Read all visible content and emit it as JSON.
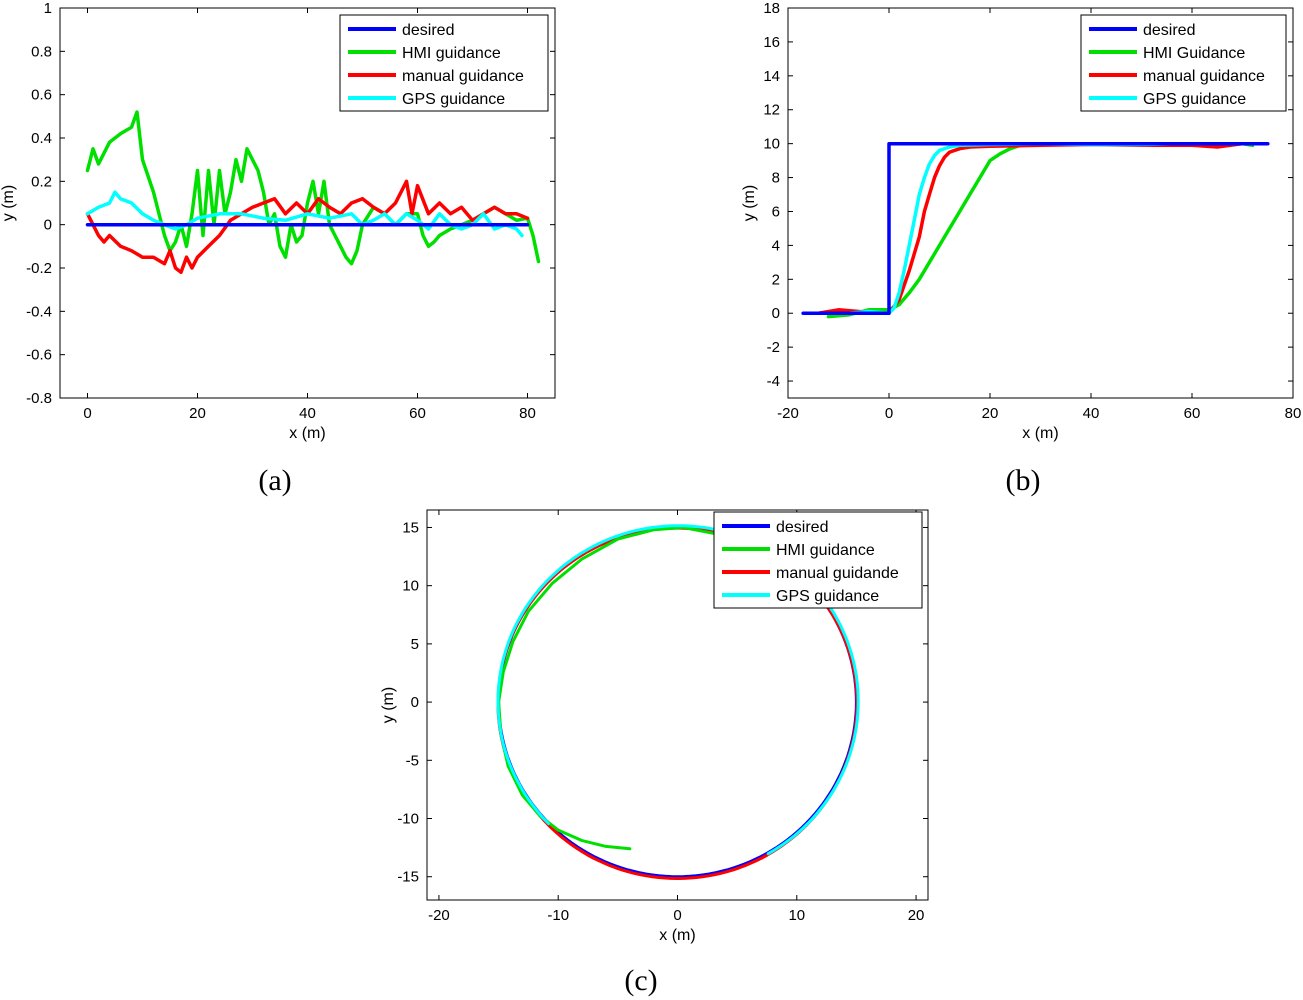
{
  "colors": {
    "desired": "#0000ff",
    "hmi": "#00e000",
    "manual": "#ff0000",
    "gps": "#00ffff"
  },
  "chart_data": [
    {
      "id": "a",
      "caption": "(a)",
      "type": "line",
      "xlabel": "x (m)",
      "ylabel": "y (m)",
      "xlim": [
        -5,
        85
      ],
      "ylim": [
        -0.8,
        1.0
      ],
      "xticks": [
        0,
        20,
        40,
        60,
        80
      ],
      "yticks": [
        -0.8,
        -0.6,
        -0.4,
        -0.2,
        0,
        0.2,
        0.4,
        0.6,
        0.8,
        1
      ],
      "ytick_labels": [
        "-0.8",
        "-0.6",
        "-0.4",
        "-0.2",
        "0",
        "0.2",
        "0.4",
        "0.6",
        "0.8",
        "1"
      ],
      "legend": "top-right",
      "series": [
        {
          "name": "desired",
          "color_key": "desired",
          "x": [
            0,
            80
          ],
          "y": [
            0,
            0
          ]
        },
        {
          "name": "HMI guidance",
          "color_key": "hmi",
          "x": [
            0,
            1,
            2,
            4,
            6,
            8,
            9,
            10,
            12,
            14,
            15,
            16,
            17,
            18,
            19,
            20,
            21,
            22,
            23,
            24,
            25,
            26,
            27,
            28,
            29,
            30,
            31,
            32,
            33,
            34,
            35,
            36,
            37,
            38,
            39,
            40,
            41,
            42,
            43,
            44,
            45,
            46,
            47,
            48,
            49,
            50,
            52,
            54,
            56,
            58,
            60,
            61,
            62,
            63,
            64,
            66,
            68,
            70,
            72,
            74,
            76,
            78,
            80,
            81,
            82
          ],
          "y": [
            0.25,
            0.35,
            0.28,
            0.38,
            0.42,
            0.45,
            0.52,
            0.3,
            0.15,
            -0.05,
            -0.12,
            -0.08,
            0.0,
            -0.1,
            0.05,
            0.25,
            -0.05,
            0.25,
            0.0,
            0.25,
            0.05,
            0.15,
            0.3,
            0.2,
            0.35,
            0.3,
            0.25,
            0.15,
            0.0,
            0.05,
            -0.1,
            -0.15,
            0.0,
            -0.08,
            -0.05,
            0.1,
            0.2,
            0.05,
            0.2,
            0.0,
            -0.05,
            -0.1,
            -0.15,
            -0.18,
            -0.12,
            0.0,
            0.08,
            0.05,
            0.0,
            0.05,
            0.05,
            -0.05,
            -0.1,
            -0.08,
            -0.05,
            -0.02,
            0.0,
            0.02,
            0.05,
            0.08,
            0.05,
            0.02,
            0.03,
            -0.05,
            -0.17
          ]
        },
        {
          "name": "manual guidance",
          "color_key": "manual",
          "x": [
            0,
            1,
            2,
            3,
            4,
            6,
            8,
            10,
            12,
            14,
            15,
            16,
            17,
            18,
            19,
            20,
            22,
            24,
            26,
            28,
            30,
            32,
            34,
            36,
            38,
            40,
            42,
            44,
            46,
            48,
            50,
            52,
            54,
            56,
            58,
            59,
            60,
            62,
            64,
            66,
            68,
            70,
            72,
            74,
            76,
            78,
            80
          ],
          "y": [
            0.05,
            0.0,
            -0.05,
            -0.08,
            -0.05,
            -0.1,
            -0.12,
            -0.15,
            -0.15,
            -0.18,
            -0.12,
            -0.2,
            -0.22,
            -0.15,
            -0.2,
            -0.15,
            -0.1,
            -0.05,
            0.02,
            0.05,
            0.08,
            0.1,
            0.12,
            0.05,
            0.1,
            0.05,
            0.12,
            0.08,
            0.05,
            0.1,
            0.12,
            0.08,
            0.05,
            0.1,
            0.2,
            0.05,
            0.18,
            0.05,
            0.1,
            0.05,
            0.08,
            0.02,
            0.05,
            0.08,
            0.05,
            0.05,
            0.03
          ]
        },
        {
          "name": "GPS guidance",
          "color_key": "gps",
          "x": [
            0,
            2,
            4,
            5,
            6,
            8,
            10,
            12,
            14,
            16,
            18,
            20,
            24,
            28,
            32,
            36,
            40,
            44,
            48,
            50,
            52,
            54,
            56,
            58,
            60,
            62,
            64,
            66,
            68,
            70,
            72,
            74,
            76,
            78,
            79
          ],
          "y": [
            0.05,
            0.08,
            0.1,
            0.15,
            0.12,
            0.1,
            0.05,
            0.02,
            0.0,
            -0.02,
            0.0,
            0.03,
            0.05,
            0.05,
            0.03,
            0.02,
            0.05,
            0.03,
            0.05,
            0.0,
            0.02,
            0.05,
            0.0,
            0.05,
            0.02,
            -0.02,
            0.05,
            0.0,
            -0.02,
            0.0,
            0.05,
            -0.02,
            0.0,
            -0.02,
            -0.05
          ]
        }
      ]
    },
    {
      "id": "b",
      "caption": "(b)",
      "type": "line",
      "xlabel": "x (m)",
      "ylabel": "y (m)",
      "xlim": [
        -20,
        80
      ],
      "ylim": [
        -5,
        18
      ],
      "xticks": [
        -20,
        0,
        20,
        40,
        60,
        80
      ],
      "yticks": [
        -4,
        -2,
        0,
        2,
        4,
        6,
        8,
        10,
        12,
        14,
        16,
        18
      ],
      "ytick_labels": [
        "-4",
        "-2",
        "0",
        "2",
        "4",
        "6",
        "8",
        "10",
        "12",
        "14",
        "16",
        "18"
      ],
      "legend": "top-right",
      "series": [
        {
          "name": "desired",
          "color_key": "desired",
          "x": [
            -17,
            0,
            0,
            75
          ],
          "y": [
            0,
            0,
            10,
            10
          ]
        },
        {
          "name": "HMI Guidance",
          "color_key": "hmi",
          "x": [
            -12,
            -8,
            -4,
            0,
            2,
            4,
            6,
            8,
            10,
            12,
            14,
            16,
            18,
            20,
            22,
            24,
            26,
            30,
            40,
            50,
            60,
            66,
            70,
            72
          ],
          "y": [
            -0.2,
            -0.1,
            0.2,
            0.2,
            0.5,
            1.2,
            2.0,
            3.0,
            4.0,
            5.0,
            6.0,
            7.0,
            8.0,
            9.0,
            9.4,
            9.7,
            9.9,
            10.0,
            10.0,
            9.95,
            10.0,
            10.0,
            10.0,
            9.9
          ]
        },
        {
          "name": "manual guidance",
          "color_key": "manual",
          "x": [
            -14,
            -10,
            -6,
            -2,
            0,
            2,
            4,
            6,
            7,
            8,
            9,
            10,
            11,
            12,
            14,
            16,
            20,
            30,
            40,
            50,
            60,
            65,
            70
          ],
          "y": [
            0.0,
            0.2,
            0.1,
            0.0,
            0.0,
            0.8,
            2.5,
            4.5,
            6.0,
            7.0,
            8.0,
            8.7,
            9.2,
            9.5,
            9.7,
            9.8,
            9.85,
            9.9,
            9.95,
            9.9,
            9.9,
            9.8,
            10.0
          ]
        },
        {
          "name": "GPS guidance",
          "color_key": "gps",
          "x": [
            -8,
            -4,
            0,
            1,
            2,
            3,
            4,
            5,
            6,
            7,
            8,
            9,
            10,
            12,
            14,
            20,
            30,
            40,
            50,
            56
          ],
          "y": [
            0.0,
            0.1,
            0.0,
            0.3,
            1.2,
            2.5,
            4.0,
            5.5,
            7.0,
            8.0,
            8.8,
            9.3,
            9.6,
            9.8,
            9.9,
            9.95,
            10.0,
            9.95,
            9.95,
            10.0
          ]
        }
      ]
    },
    {
      "id": "c",
      "caption": "(c)",
      "type": "line",
      "xlabel": "x (m)",
      "ylabel": "y (m)",
      "xlim": [
        -21,
        21
      ],
      "ylim": [
        -17,
        16.5
      ],
      "xticks": [
        -20,
        -10,
        0,
        10,
        20
      ],
      "yticks": [
        -15,
        -10,
        -5,
        0,
        5,
        10,
        15
      ],
      "ytick_labels": [
        "-15",
        "-10",
        "-5",
        "0",
        "5",
        "10",
        "15"
      ],
      "legend": "top-right",
      "series": [
        {
          "name": "desired",
          "color_key": "desired",
          "shape": "circle",
          "center": [
            0,
            0
          ],
          "radius": 15,
          "theta_deg": [
            0,
            360
          ]
        },
        {
          "name": "HMI guidance",
          "color_key": "hmi",
          "shape": "arc",
          "x": [
            3.0,
            0.5,
            -2.0,
            -5.0,
            -8.0,
            -10.5,
            -12.5,
            -13.8,
            -14.6,
            -15.0,
            -14.8,
            -14.2,
            -13.0,
            -11.5,
            -10.0,
            -8.0,
            -6.0,
            -4.0
          ],
          "y": [
            14.5,
            15.0,
            14.8,
            14.0,
            12.3,
            10.2,
            7.8,
            5.2,
            2.6,
            0.0,
            -2.8,
            -5.5,
            -8.0,
            -9.8,
            -11.0,
            -11.9,
            -12.4,
            -12.6
          ]
        },
        {
          "name": "manual guidande",
          "color_key": "manual",
          "shape": "circle",
          "center": [
            0,
            -0.1
          ],
          "radius": 15.05,
          "theta_deg": [
            90,
            450
          ]
        },
        {
          "name": "GPS guidance",
          "color_key": "gps",
          "shape": "circle",
          "center": [
            0.05,
            0.05
          ],
          "radius": 15.1,
          "theta_deg": [
            -60,
            225
          ]
        }
      ]
    }
  ]
}
